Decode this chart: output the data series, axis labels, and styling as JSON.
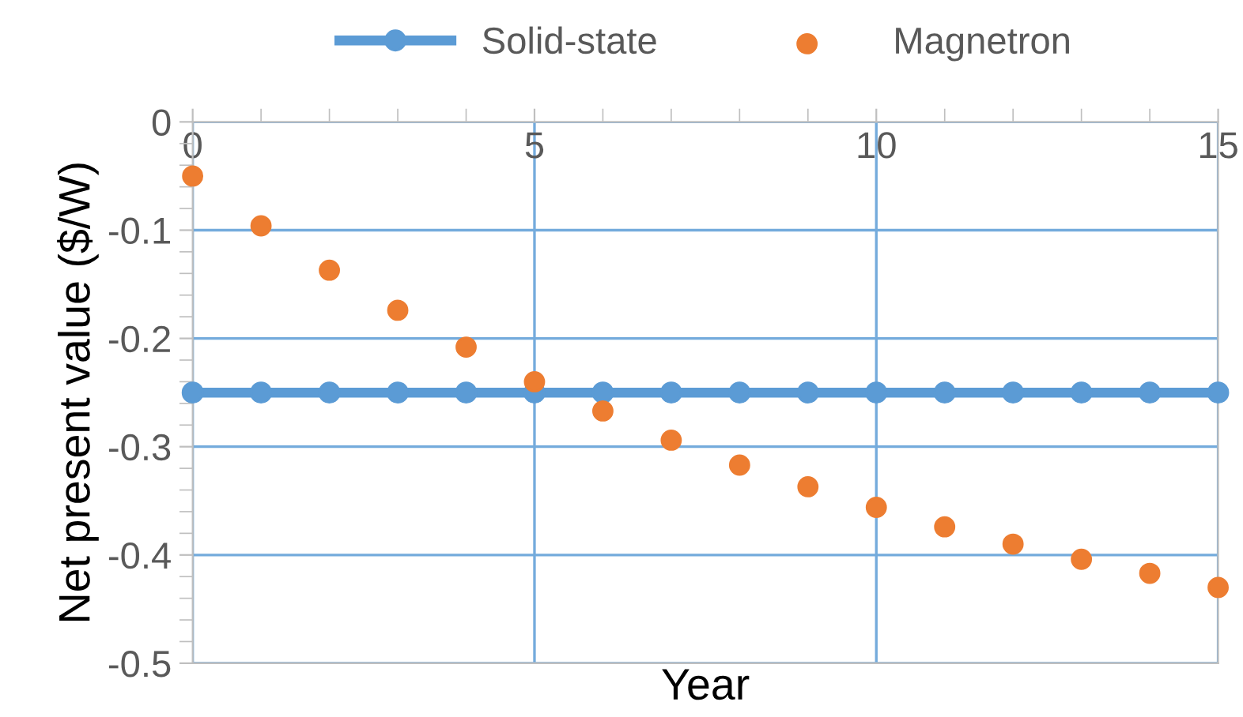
{
  "chart_data": {
    "type": "line",
    "xlabel": "Year",
    "ylabel": "Net present value ($/W)",
    "x": [
      0,
      1,
      2,
      3,
      4,
      5,
      6,
      7,
      8,
      9,
      10,
      11,
      12,
      13,
      14,
      15
    ],
    "series": [
      {
        "name": "Solid-state",
        "color": "#5b9bd5",
        "marker": "circle",
        "line_style": "solid",
        "values": [
          -0.25,
          -0.25,
          -0.25,
          -0.25,
          -0.25,
          -0.25,
          -0.25,
          -0.25,
          -0.25,
          -0.25,
          -0.25,
          -0.25,
          -0.25,
          -0.25,
          -0.25,
          -0.25
        ]
      },
      {
        "name": "Magnetron",
        "type": "scatter",
        "color": "#ed7d31",
        "marker": "circle",
        "values": [
          -0.05,
          -0.096,
          -0.137,
          -0.174,
          -0.208,
          -0.24,
          -0.267,
          -0.294,
          -0.317,
          -0.337,
          -0.356,
          -0.374,
          -0.39,
          -0.404,
          -0.417,
          -0.43
        ]
      }
    ],
    "xlim": [
      0,
      15
    ],
    "xticks": [
      0,
      5,
      10,
      15
    ],
    "ylim": [
      -0.5,
      0
    ],
    "yticks": [
      0,
      -0.1,
      -0.2,
      -0.3,
      -0.4,
      -0.5
    ],
    "grid": true,
    "legend": "top"
  }
}
